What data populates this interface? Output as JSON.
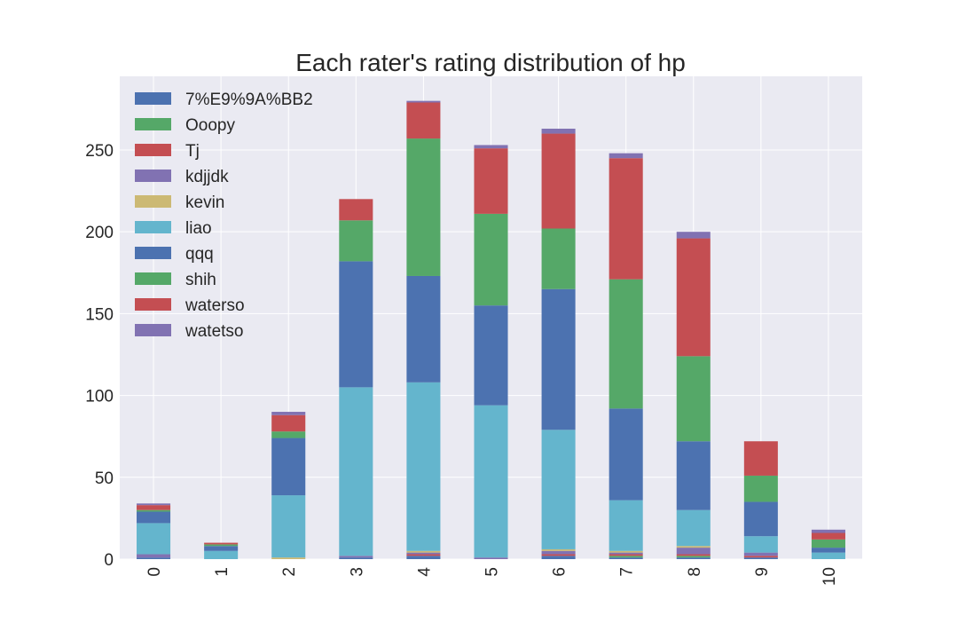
{
  "chart_data": {
    "type": "bar",
    "stacked": true,
    "title": "Each rater's rating distribution of hp",
    "xlabel": "",
    "ylabel": "",
    "categories": [
      "0",
      "1",
      "2",
      "3",
      "4",
      "5",
      "6",
      "7",
      "8",
      "9",
      "10"
    ],
    "ylim": [
      0,
      295
    ],
    "yticks": [
      0,
      50,
      100,
      150,
      200,
      250
    ],
    "grid": true,
    "legend_position": "top-left",
    "series": [
      {
        "name": "7%E9%9A%BB2",
        "color": "#4c72b0",
        "values": [
          1,
          0,
          0,
          1,
          2,
          0,
          2,
          1,
          1,
          1,
          0
        ]
      },
      {
        "name": "Ooopy",
        "color": "#55a868",
        "values": [
          0,
          0,
          0,
          0,
          0,
          0,
          0,
          1,
          1,
          0,
          0
        ]
      },
      {
        "name": "Tj",
        "color": "#c44e52",
        "values": [
          0,
          0,
          0,
          0,
          1,
          0,
          1,
          1,
          1,
          1,
          0
        ]
      },
      {
        "name": "kdjjdk",
        "color": "#8172b2",
        "values": [
          2,
          0,
          0,
          1,
          1,
          1,
          2,
          1,
          4,
          2,
          0
        ]
      },
      {
        "name": "kevin",
        "color": "#ccb974",
        "values": [
          0,
          0,
          1,
          0,
          1,
          0,
          1,
          1,
          1,
          0,
          0
        ]
      },
      {
        "name": "liao",
        "color": "#64b5cd",
        "values": [
          19,
          5,
          38,
          103,
          103,
          93,
          73,
          31,
          22,
          10,
          4
        ]
      },
      {
        "name": "qqq",
        "color": "#4c72b0",
        "values": [
          7,
          3,
          35,
          77,
          65,
          61,
          86,
          56,
          42,
          21,
          3
        ]
      },
      {
        "name": "shih",
        "color": "#55a868",
        "values": [
          1,
          1,
          4,
          25,
          84,
          56,
          37,
          79,
          52,
          16,
          5
        ]
      },
      {
        "name": "waterso",
        "color": "#c44e52",
        "values": [
          3,
          1,
          10,
          13,
          22,
          40,
          58,
          74,
          72,
          21,
          4
        ]
      },
      {
        "name": "watetso",
        "color": "#8172b2",
        "values": [
          1,
          0,
          2,
          0,
          1,
          2,
          3,
          3,
          4,
          0,
          2
        ]
      }
    ]
  },
  "style": {
    "plot_background": "#eaeaf2",
    "grid_color": "#ffffff",
    "text_color": "#262626"
  }
}
